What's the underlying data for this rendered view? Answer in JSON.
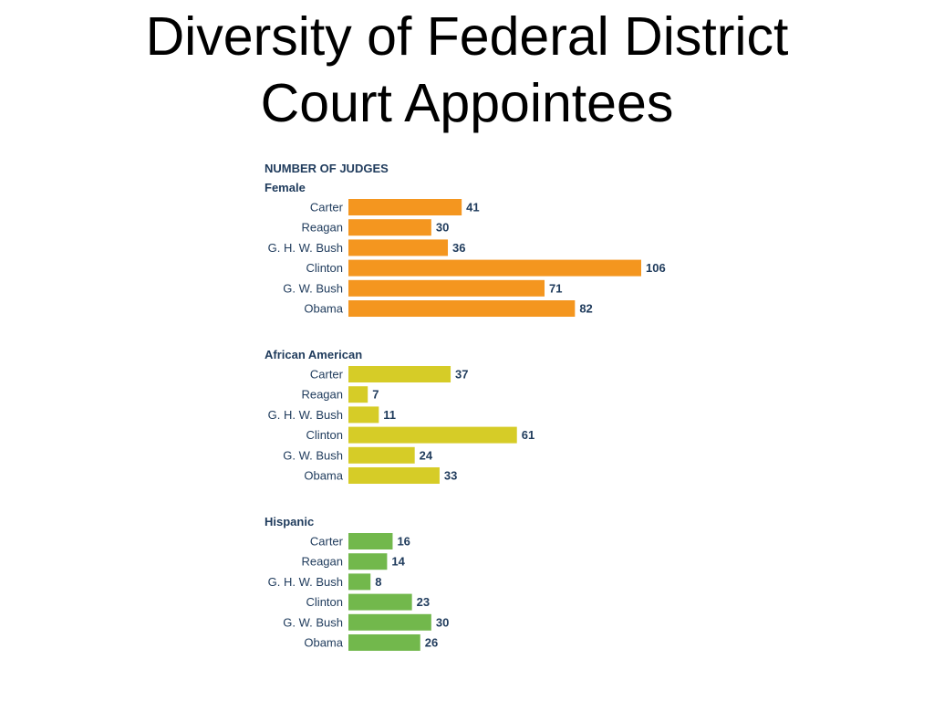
{
  "title": {
    "line1": "Diversity of Federal District",
    "line2": "Court Appointees"
  },
  "chart_data": {
    "type": "bar",
    "orientation": "horizontal",
    "heading": "NUMBER OF JUDGES",
    "categories": [
      "Carter",
      "Reagan",
      "G. H. W. Bush",
      "Clinton",
      "G. W. Bush",
      "Obama"
    ],
    "series": [
      {
        "name": "Female",
        "color": "#f4961f",
        "values": [
          41,
          30,
          36,
          106,
          71,
          82
        ]
      },
      {
        "name": "African American",
        "color": "#d6cc27",
        "values": [
          37,
          7,
          11,
          61,
          24,
          33
        ]
      },
      {
        "name": "Hispanic",
        "color": "#72b84c",
        "values": [
          16,
          14,
          8,
          23,
          30,
          26
        ]
      }
    ],
    "xlim": [
      0,
      106
    ],
    "grid": false,
    "legend": "none",
    "data_labels": true
  }
}
